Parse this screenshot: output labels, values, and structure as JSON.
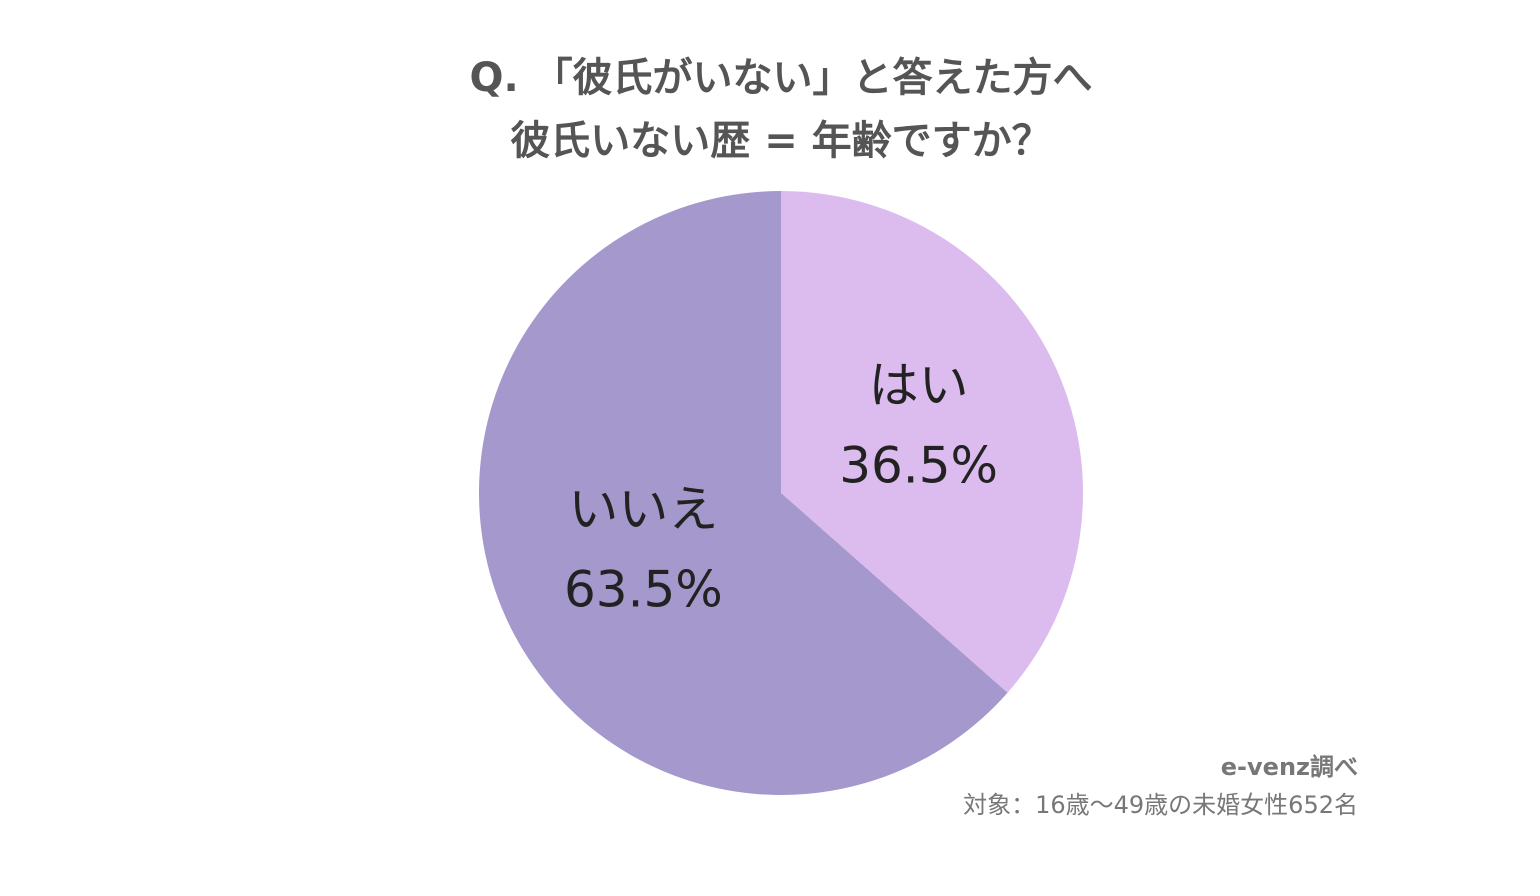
{
  "chart_data": {
    "type": "pie",
    "title": [
      "Q. 「彼氏がいない」と答えた方へ",
      "彼氏いない歴 = 年齢ですか？"
    ],
    "categories": [
      "はい",
      "いいえ"
    ],
    "values": [
      36.5,
      63.5
    ],
    "value_labels": [
      "36.5%",
      "63.5%"
    ],
    "colors": [
      "#dcbbee",
      "#a498cc"
    ],
    "notes": [
      "e-venz調べ",
      "対象：16歳〜49歳の未婚女性652名"
    ]
  }
}
